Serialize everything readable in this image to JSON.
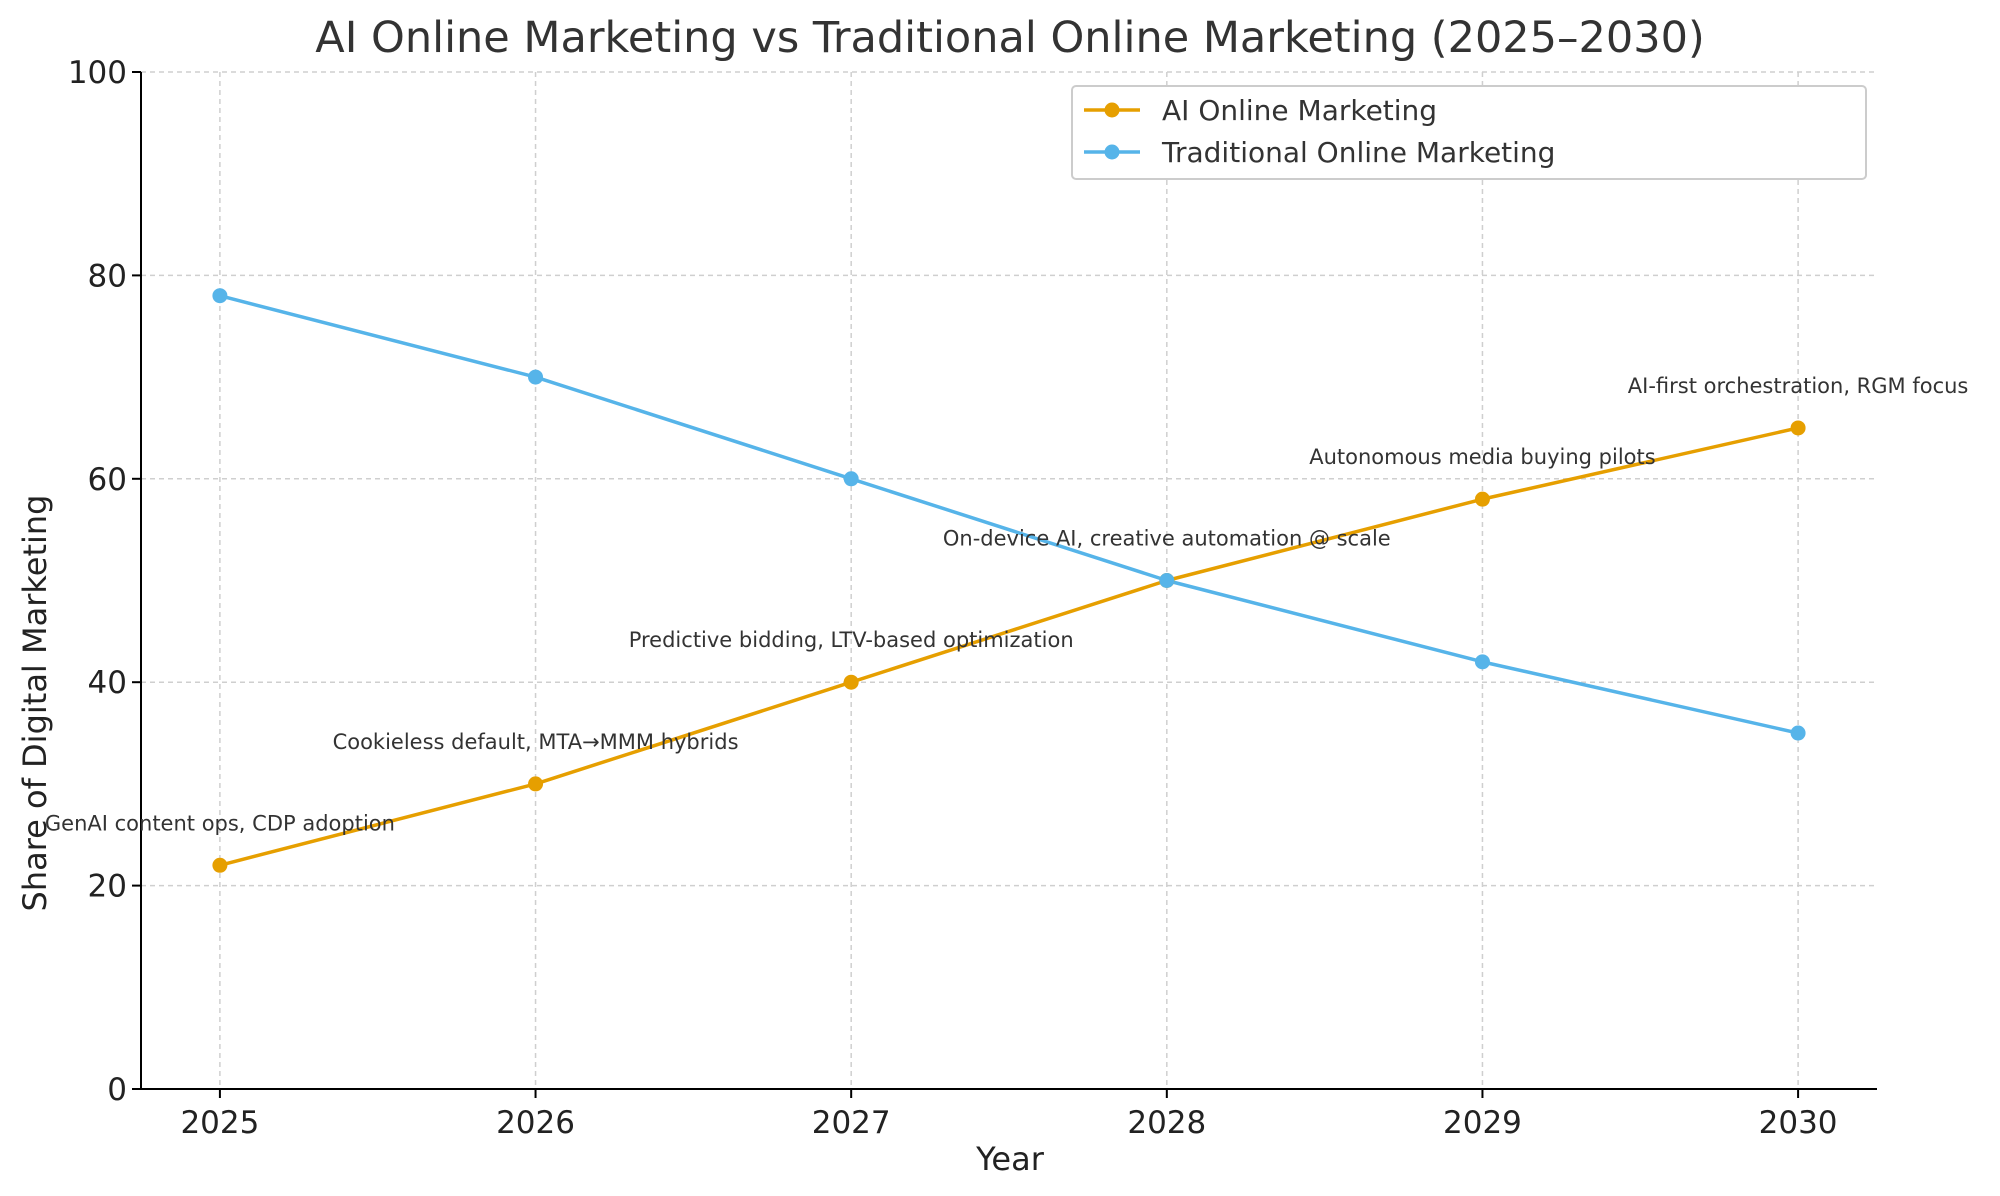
{
  "chart_data": {
    "type": "line",
    "title": "AI Online Marketing vs Traditional Online Marketing (2025–2030)",
    "xlabel": "Year",
    "ylabel": "Share of Digital Marketing",
    "x": [
      2025,
      2026,
      2027,
      2028,
      2029,
      2030
    ],
    "x_tick_labels": [
      "2025",
      "2026",
      "2027",
      "2028",
      "2029",
      "2030"
    ],
    "xlim": [
      2024.75,
      2030.25
    ],
    "ylim": [
      0,
      100
    ],
    "y_ticks": [
      0,
      20,
      40,
      60,
      80,
      100
    ],
    "y_tick_labels": [
      "0",
      "20",
      "40",
      "60",
      "80",
      "100"
    ],
    "grid": true,
    "legend_position": "top-right",
    "series": [
      {
        "name": "AI Online Marketing",
        "color": "#E69F00",
        "values": [
          22,
          30,
          40,
          50,
          58,
          65
        ]
      },
      {
        "name": "Traditional Online Marketing",
        "color": "#56B4E9",
        "values": [
          78,
          70,
          60,
          50,
          42,
          35
        ]
      }
    ],
    "annotations": [
      {
        "text": "GenAI content ops, CDP adoption",
        "x": 2025,
        "y": 22
      },
      {
        "text": "Cookieless default, MTA→MMM hybrids",
        "x": 2026,
        "y": 30
      },
      {
        "text": "Predictive bidding, LTV-based optimization",
        "x": 2027,
        "y": 40
      },
      {
        "text": "On-device AI, creative automation @ scale",
        "x": 2028,
        "y": 50
      },
      {
        "text": "Autonomous media buying pilots",
        "x": 2029,
        "y": 58
      },
      {
        "text": "AI-first orchestration, RGM focus",
        "x": 2030,
        "y": 65
      }
    ]
  }
}
